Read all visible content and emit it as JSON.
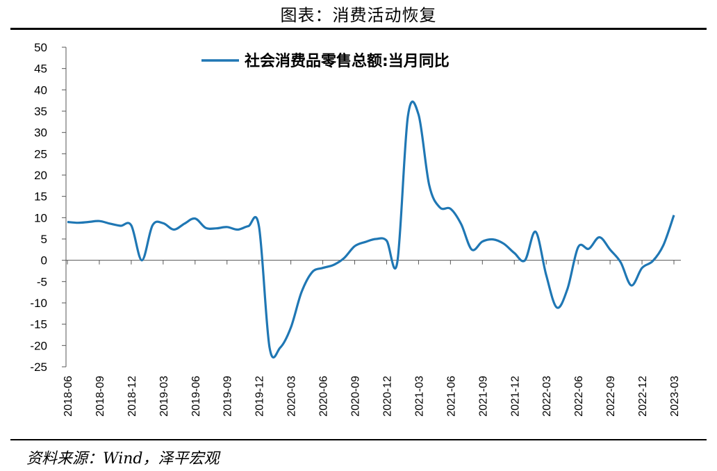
{
  "page": {
    "title": "图表：消费活动恢复",
    "source": "资料来源：Wind，泽平宏观"
  },
  "colors": {
    "line": "#1f77b4",
    "axis": "#555555",
    "text": "#000000"
  },
  "chart_data": {
    "type": "line",
    "title": "",
    "xlabel": "",
    "ylabel": "",
    "ylim": [
      -25,
      50
    ],
    "yticks": [
      50,
      45,
      40,
      35,
      30,
      25,
      20,
      15,
      10,
      5,
      0,
      -5,
      -10,
      -15,
      -20,
      -25
    ],
    "xtick_labels": [
      "2018-06",
      "2018-09",
      "2018-12",
      "2019-03",
      "2019-06",
      "2019-09",
      "2019-12",
      "2020-03",
      "2020-06",
      "2020-09",
      "2020-12",
      "2021-03",
      "2021-06",
      "2021-09",
      "2021-12",
      "2022-03",
      "2022-06",
      "2022-09",
      "2022-12",
      "2023-03"
    ],
    "legend_position": "top",
    "grid": false,
    "series": [
      {
        "name": "社会消费品零售总额:当月同比",
        "x": [
          "2018-06",
          "2018-07",
          "2018-08",
          "2018-09",
          "2018-10",
          "2018-11",
          "2018-12",
          "2019-01",
          "2019-02",
          "2019-03",
          "2019-04",
          "2019-05",
          "2019-06",
          "2019-07",
          "2019-08",
          "2019-09",
          "2019-10",
          "2019-11",
          "2019-12",
          "2020-01",
          "2020-02",
          "2020-03",
          "2020-04",
          "2020-05",
          "2020-06",
          "2020-07",
          "2020-08",
          "2020-09",
          "2020-10",
          "2020-11",
          "2020-12",
          "2021-01",
          "2021-02",
          "2021-03",
          "2021-04",
          "2021-05",
          "2021-06",
          "2021-07",
          "2021-08",
          "2021-09",
          "2021-10",
          "2021-11",
          "2021-12",
          "2022-01",
          "2022-02",
          "2022-03",
          "2022-04",
          "2022-05",
          "2022-06",
          "2022-07",
          "2022-08",
          "2022-09",
          "2022-10",
          "2022-11",
          "2022-12",
          "2023-01",
          "2023-02",
          "2023-03"
        ],
        "values": [
          9.0,
          8.8,
          9.0,
          9.2,
          8.6,
          8.1,
          8.2,
          0.0,
          8.2,
          8.7,
          7.2,
          8.6,
          9.8,
          7.6,
          7.5,
          7.8,
          7.2,
          8.0,
          8.0,
          -20.5,
          -20.5,
          -15.8,
          -7.5,
          -2.8,
          -1.8,
          -1.1,
          0.5,
          3.3,
          4.3,
          5.0,
          4.6,
          -0.5,
          33.8,
          34.2,
          17.7,
          12.4,
          12.1,
          8.5,
          2.5,
          4.4,
          4.9,
          3.9,
          1.7,
          0.0,
          6.7,
          -3.5,
          -11.1,
          -6.7,
          3.1,
          2.7,
          5.4,
          2.5,
          -0.5,
          -5.9,
          -1.8,
          -0.2,
          3.5,
          10.6
        ]
      }
    ]
  }
}
